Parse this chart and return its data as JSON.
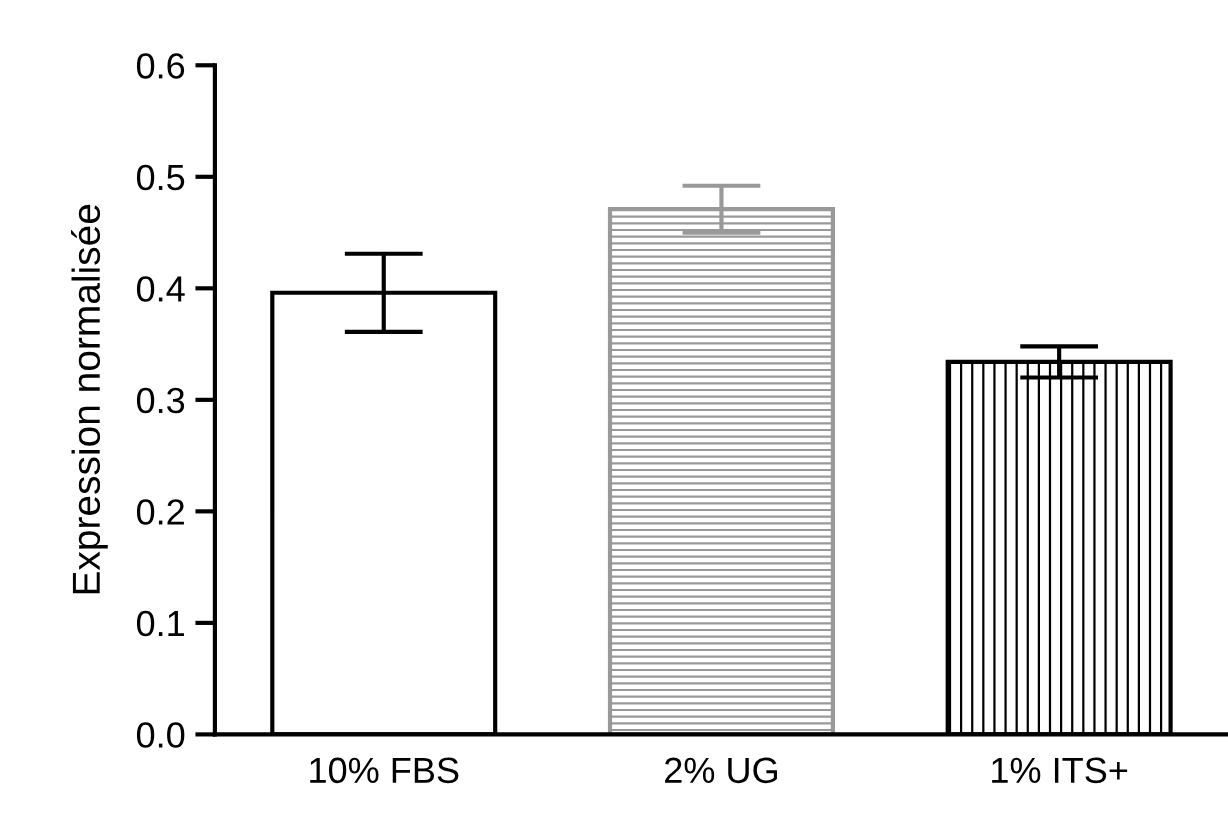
{
  "chart_data": {
    "type": "bar",
    "ylabel": "Expression normalisée",
    "categories": [
      "10% FBS",
      "2% UG",
      "1% ITS+"
    ],
    "values": [
      0.396,
      0.471,
      0.334
    ],
    "errors": [
      0.035,
      0.021,
      0.014
    ],
    "colors": [
      "#000000",
      "#999999",
      "#000000"
    ],
    "ylim": [
      0,
      0.6
    ],
    "yticks": [
      {
        "value": 0,
        "label": "0.0"
      },
      0.1,
      0.2,
      0.3,
      0.4,
      0.5,
      0.6
    ],
    "grid": false,
    "legend": false
  }
}
